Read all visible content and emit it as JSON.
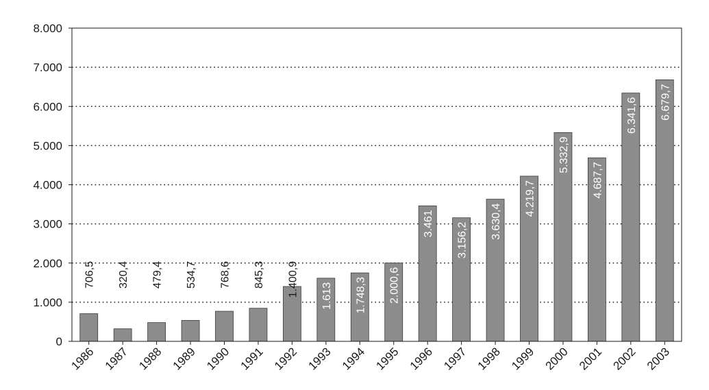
{
  "chart_data": {
    "type": "bar",
    "title": "",
    "xlabel": "",
    "ylabel": "",
    "ylim": [
      0,
      8000
    ],
    "grid": "horizontal-dotted",
    "legend": "none",
    "y_ticks": [
      0,
      1000,
      2000,
      3000,
      4000,
      5000,
      6000,
      7000,
      8000
    ],
    "y_tick_labels": [
      "0",
      "1.000",
      "2.000",
      "3.000",
      "4.000",
      "5.000",
      "6.000",
      "7.000",
      "8.000"
    ],
    "categories": [
      "1986",
      "1987",
      "1988",
      "1989",
      "1990",
      "1991",
      "1992",
      "1993",
      "1994",
      "1995",
      "1996",
      "1997",
      "1998",
      "1999",
      "2000",
      "2001",
      "2002",
      "2003"
    ],
    "values": [
      706.5,
      320.4,
      479.4,
      534.7,
      768.6,
      845.3,
      1400.9,
      1613,
      1748.3,
      2000.6,
      3461,
      3156.2,
      3630.4,
      4219.7,
      5332.9,
      4687.7,
      6341.6,
      6679.7
    ],
    "value_labels": [
      "706,5",
      "320,4",
      "479,4",
      "534,7",
      "768,6",
      "845,3",
      "1.400,9",
      "1.613",
      "1.748,3",
      "2.000,6",
      "3.461",
      "3.156,2",
      "3.630,4",
      "4.219,7",
      "5.332,9",
      "4.687,7",
      "6.341,6",
      "6.679,7"
    ],
    "colors": {
      "bar": "#8c8c8c",
      "bar_edge": "#3a3a3a",
      "axis": "#1a1a1a",
      "grid": "#1a1a1a",
      "label_inside": "#ffffff",
      "label_outside": "#1a1a1a"
    }
  }
}
